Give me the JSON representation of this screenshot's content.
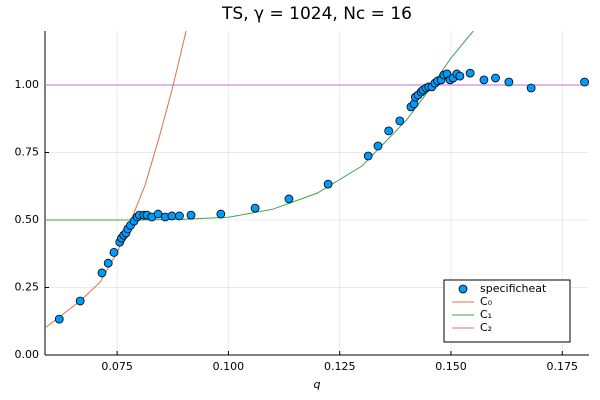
{
  "chart_data": {
    "type": "scatter",
    "title": "TS, γ = 1024, Nc = 16",
    "x_label": "q",
    "xlim": [
      0.0588,
      0.181
    ],
    "ylim": [
      0,
      1.2
    ],
    "xticks": [
      {
        "value": 0.075,
        "label": "0.075"
      },
      {
        "value": 0.1,
        "label": "0.100"
      },
      {
        "value": 0.125,
        "label": "0.125"
      },
      {
        "value": 0.15,
        "label": "0.150"
      },
      {
        "value": 0.175,
        "label": "0.175"
      }
    ],
    "yticks": [
      {
        "value": 0,
        "label": "0.00"
      },
      0.25,
      {
        "value": 0.5,
        "label": "0.50"
      },
      0.75,
      {
        "value": 1,
        "label": "1.00"
      }
    ],
    "grid": true,
    "legend": "bottom-right",
    "series": [
      {
        "name": "specificheat",
        "type": "scatter",
        "color": "#009afa",
        "x": [
          0.062,
          0.0667,
          0.0716,
          0.073,
          0.0743,
          0.0756,
          0.076,
          0.0765,
          0.077,
          0.0774,
          0.078,
          0.0788,
          0.0795,
          0.08,
          0.081,
          0.0817,
          0.0828,
          0.0842,
          0.0858,
          0.0873,
          0.089,
          0.0916,
          0.0983,
          0.106,
          0.1136,
          0.1224,
          0.1314,
          0.1336,
          0.136,
          0.1385,
          0.141,
          0.1417,
          0.142,
          0.1426,
          0.1433,
          0.1437,
          0.1444,
          0.145,
          0.1457,
          0.1464,
          0.147,
          0.1478,
          0.1484,
          0.1491,
          0.1498,
          0.1505,
          0.1513,
          0.152,
          0.1543,
          0.1574,
          0.16,
          0.163,
          0.168,
          0.18
        ],
        "values": [
          0.133,
          0.2,
          0.304,
          0.34,
          0.38,
          0.418,
          0.433,
          0.444,
          0.452,
          0.467,
          0.48,
          0.496,
          0.511,
          0.518,
          0.518,
          0.518,
          0.511,
          0.522,
          0.511,
          0.515,
          0.515,
          0.518,
          0.522,
          0.544,
          0.578,
          0.633,
          0.737,
          0.774,
          0.83,
          0.867,
          0.919,
          0.93,
          0.955,
          0.963,
          0.974,
          0.981,
          0.989,
          0.993,
          0.993,
          1.007,
          1.015,
          1.019,
          1.037,
          1.041,
          1.019,
          1.026,
          1.041,
          1.033,
          1.044,
          1.019,
          1.026,
          1.011,
          0.989,
          1.011
        ]
      },
      {
        "name": "C₀",
        "type": "line",
        "color": "#e26f46",
        "x": [
          0.0588,
          0.0667,
          0.0712,
          0.075,
          0.0779,
          0.0813,
          0.0846,
          0.0873,
          0.0905
        ],
        "values": [
          0.1,
          0.2,
          0.27,
          0.38,
          0.49,
          0.63,
          0.815,
          0.98,
          1.2
        ]
      },
      {
        "name": "C₁",
        "type": "line",
        "color": "#3da44d",
        "x": [
          0.0588,
          0.08,
          0.09,
          0.1,
          0.11,
          0.12,
          0.13,
          0.14,
          0.145,
          0.15,
          0.155
        ],
        "values": [
          0.5,
          0.5,
          0.503,
          0.51,
          0.54,
          0.6,
          0.7,
          0.87,
          0.98,
          1.1,
          1.2
        ]
      },
      {
        "name": "C₂",
        "type": "line",
        "color": "#c271d2",
        "x": [
          0.0588,
          0.181
        ],
        "values": [
          1,
          1
        ]
      }
    ]
  }
}
